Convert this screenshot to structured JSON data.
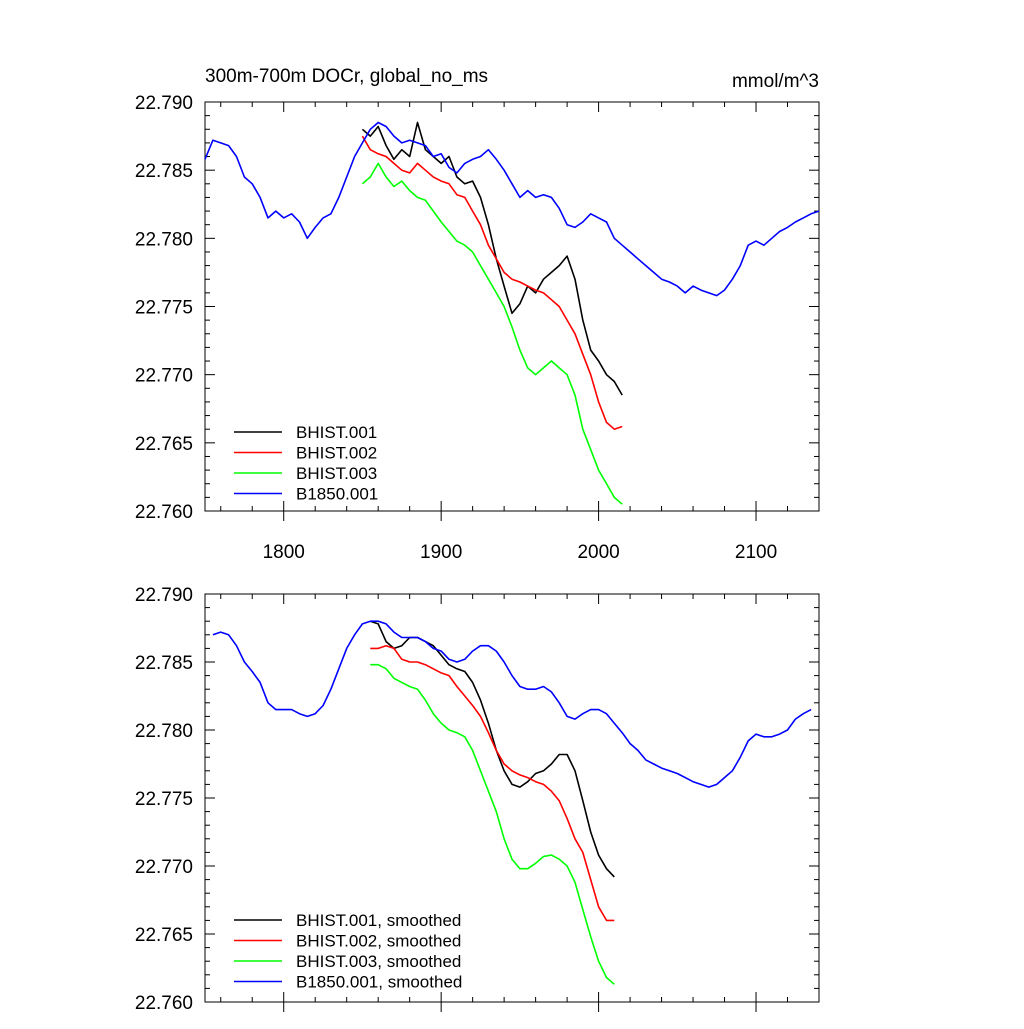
{
  "chart_data": [
    {
      "type": "line",
      "title": "300m-700m DOCr, global_no_ms",
      "units": "mmol/m^3",
      "xlim": [
        1750,
        2140
      ],
      "ylim": [
        22.76,
        22.79
      ],
      "x_ticks": [
        1800,
        1900,
        2000,
        2100
      ],
      "x_tick_labels": [
        "1800",
        "1900",
        "2000",
        "2100"
      ],
      "y_ticks": [
        22.76,
        22.765,
        22.77,
        22.775,
        22.78,
        22.785,
        22.79
      ],
      "y_tick_labels": [
        "22.760",
        "22.765",
        "22.770",
        "22.775",
        "22.780",
        "22.785",
        "22.790"
      ],
      "legend_position": "bottom-left",
      "series": [
        {
          "name": "BHIST.001",
          "color": "#000000",
          "x": [
            1850,
            1855,
            1860,
            1865,
            1870,
            1875,
            1880,
            1885,
            1890,
            1895,
            1900,
            1905,
            1910,
            1915,
            1920,
            1925,
            1930,
            1935,
            1940,
            1945,
            1950,
            1955,
            1960,
            1965,
            1970,
            1975,
            1980,
            1985,
            1990,
            1995,
            2000,
            2005,
            2010,
            2015
          ],
          "y": [
            22.788,
            22.7875,
            22.7882,
            22.7868,
            22.7858,
            22.7865,
            22.786,
            22.7885,
            22.7865,
            22.786,
            22.7855,
            22.786,
            22.7845,
            22.784,
            22.7842,
            22.783,
            22.781,
            22.7785,
            22.7765,
            22.7745,
            22.7752,
            22.7765,
            22.776,
            22.777,
            22.7775,
            22.778,
            22.7787,
            22.777,
            22.774,
            22.7718,
            22.771,
            22.77,
            22.7695,
            22.7685
          ]
        },
        {
          "name": "BHIST.002",
          "color": "#ff0000",
          "x": [
            1850,
            1855,
            1860,
            1865,
            1870,
            1875,
            1880,
            1885,
            1890,
            1895,
            1900,
            1905,
            1910,
            1915,
            1920,
            1925,
            1930,
            1935,
            1940,
            1945,
            1950,
            1955,
            1960,
            1965,
            1970,
            1975,
            1980,
            1985,
            1990,
            1995,
            2000,
            2005,
            2010,
            2015
          ],
          "y": [
            22.7875,
            22.7865,
            22.7862,
            22.786,
            22.7855,
            22.785,
            22.7848,
            22.7855,
            22.785,
            22.7845,
            22.7842,
            22.784,
            22.7832,
            22.783,
            22.782,
            22.781,
            22.7795,
            22.7785,
            22.7775,
            22.777,
            22.7768,
            22.7765,
            22.7762,
            22.776,
            22.7755,
            22.775,
            22.774,
            22.773,
            22.7715,
            22.77,
            22.768,
            22.7665,
            22.766,
            22.7662
          ]
        },
        {
          "name": "BHIST.003",
          "color": "#00ff00",
          "x": [
            1850,
            1855,
            1860,
            1865,
            1870,
            1875,
            1880,
            1885,
            1890,
            1895,
            1900,
            1905,
            1910,
            1915,
            1920,
            1925,
            1930,
            1935,
            1940,
            1945,
            1950,
            1955,
            1960,
            1965,
            1970,
            1975,
            1980,
            1985,
            1990,
            1995,
            2000,
            2005,
            2010,
            2015
          ],
          "y": [
            22.784,
            22.7845,
            22.7855,
            22.7845,
            22.7838,
            22.7842,
            22.7835,
            22.783,
            22.7828,
            22.782,
            22.7812,
            22.7805,
            22.7798,
            22.7795,
            22.779,
            22.778,
            22.777,
            22.776,
            22.775,
            22.7735,
            22.7718,
            22.7705,
            22.77,
            22.7705,
            22.771,
            22.7705,
            22.77,
            22.7685,
            22.766,
            22.7645,
            22.763,
            22.762,
            22.761,
            22.7605
          ]
        },
        {
          "name": "B1850.001",
          "color": "#0000ff",
          "x": [
            1750,
            1755,
            1760,
            1765,
            1770,
            1775,
            1780,
            1785,
            1790,
            1795,
            1800,
            1805,
            1810,
            1815,
            1820,
            1825,
            1830,
            1835,
            1840,
            1845,
            1850,
            1855,
            1860,
            1865,
            1870,
            1875,
            1880,
            1885,
            1890,
            1895,
            1900,
            1905,
            1910,
            1915,
            1920,
            1925,
            1930,
            1935,
            1940,
            1945,
            1950,
            1955,
            1960,
            1965,
            1970,
            1975,
            1980,
            1985,
            1990,
            1995,
            2000,
            2005,
            2010,
            2015,
            2020,
            2025,
            2030,
            2035,
            2040,
            2045,
            2050,
            2055,
            2060,
            2065,
            2070,
            2075,
            2080,
            2085,
            2090,
            2095,
            2100,
            2105,
            2110,
            2115,
            2120,
            2125,
            2130,
            2135,
            2140
          ],
          "y": [
            22.7858,
            22.7872,
            22.787,
            22.7868,
            22.786,
            22.7845,
            22.784,
            22.783,
            22.7815,
            22.782,
            22.7815,
            22.7818,
            22.7812,
            22.78,
            22.7808,
            22.7815,
            22.7818,
            22.783,
            22.7845,
            22.786,
            22.787,
            22.788,
            22.7885,
            22.7882,
            22.7875,
            22.787,
            22.7872,
            22.787,
            22.7868,
            22.786,
            22.7862,
            22.7852,
            22.7848,
            22.7855,
            22.7858,
            22.786,
            22.7865,
            22.7858,
            22.785,
            22.784,
            22.783,
            22.7835,
            22.783,
            22.7832,
            22.783,
            22.7822,
            22.781,
            22.7808,
            22.7812,
            22.7818,
            22.7815,
            22.7812,
            22.78,
            22.7795,
            22.779,
            22.7785,
            22.778,
            22.7775,
            22.777,
            22.7768,
            22.7765,
            22.776,
            22.7765,
            22.7762,
            22.776,
            22.7758,
            22.7762,
            22.777,
            22.778,
            22.7795,
            22.7798,
            22.7795,
            22.78,
            22.7805,
            22.7808,
            22.7812,
            22.7815,
            22.7818,
            22.782
          ]
        }
      ]
    },
    {
      "type": "line",
      "xlim": [
        1750,
        2140
      ],
      "ylim": [
        22.76,
        22.79
      ],
      "x_ticks": [
        1800,
        1900,
        2000,
        2100
      ],
      "y_ticks": [
        22.76,
        22.765,
        22.77,
        22.775,
        22.78,
        22.785,
        22.79
      ],
      "y_tick_labels": [
        "22.760",
        "22.765",
        "22.770",
        "22.775",
        "22.780",
        "22.785",
        "22.790"
      ],
      "legend_position": "bottom-left",
      "series": [
        {
          "name": "BHIST.001, smoothed",
          "color": "#000000",
          "x": [
            1855,
            1860,
            1865,
            1870,
            1875,
            1880,
            1885,
            1890,
            1895,
            1900,
            1905,
            1910,
            1915,
            1920,
            1925,
            1930,
            1935,
            1940,
            1945,
            1950,
            1955,
            1960,
            1965,
            1970,
            1975,
            1980,
            1985,
            1990,
            1995,
            2000,
            2005,
            2010
          ],
          "y": [
            22.788,
            22.7878,
            22.7865,
            22.786,
            22.7862,
            22.7868,
            22.7868,
            22.7865,
            22.7862,
            22.7855,
            22.7848,
            22.7845,
            22.7843,
            22.7835,
            22.7822,
            22.7805,
            22.7785,
            22.777,
            22.776,
            22.7758,
            22.7762,
            22.7768,
            22.777,
            22.7775,
            22.7782,
            22.7782,
            22.777,
            22.7748,
            22.7725,
            22.7708,
            22.7698,
            22.7692
          ]
        },
        {
          "name": "BHIST.002, smoothed",
          "color": "#ff0000",
          "x": [
            1855,
            1860,
            1865,
            1870,
            1875,
            1880,
            1885,
            1890,
            1895,
            1900,
            1905,
            1910,
            1915,
            1920,
            1925,
            1930,
            1935,
            1940,
            1945,
            1950,
            1955,
            1960,
            1965,
            1970,
            1975,
            1980,
            1985,
            1990,
            1995,
            2000,
            2005,
            2010
          ],
          "y": [
            22.786,
            22.786,
            22.7862,
            22.786,
            22.7852,
            22.785,
            22.785,
            22.7848,
            22.7845,
            22.7842,
            22.784,
            22.7832,
            22.7825,
            22.7818,
            22.781,
            22.7798,
            22.7785,
            22.7775,
            22.777,
            22.7767,
            22.7765,
            22.7762,
            22.776,
            22.7755,
            22.7748,
            22.7735,
            22.772,
            22.771,
            22.769,
            22.767,
            22.766,
            22.766
          ]
        },
        {
          "name": "BHIST.003, smoothed",
          "color": "#00ff00",
          "x": [
            1855,
            1860,
            1865,
            1870,
            1875,
            1880,
            1885,
            1890,
            1895,
            1900,
            1905,
            1910,
            1915,
            1920,
            1925,
            1930,
            1935,
            1940,
            1945,
            1950,
            1955,
            1960,
            1965,
            1970,
            1975,
            1980,
            1985,
            1990,
            1995,
            2000,
            2005,
            2010
          ],
          "y": [
            22.7848,
            22.7848,
            22.7845,
            22.7838,
            22.7835,
            22.7832,
            22.783,
            22.7822,
            22.7812,
            22.7805,
            22.78,
            22.7798,
            22.7795,
            22.7785,
            22.777,
            22.7755,
            22.774,
            22.772,
            22.7705,
            22.7698,
            22.7698,
            22.7702,
            22.7707,
            22.7708,
            22.7705,
            22.77,
            22.7688,
            22.7668,
            22.7648,
            22.763,
            22.7618,
            22.7613
          ]
        },
        {
          "name": "B1850.001, smoothed",
          "color": "#0000ff",
          "x": [
            1755,
            1760,
            1765,
            1770,
            1775,
            1780,
            1785,
            1790,
            1795,
            1800,
            1805,
            1810,
            1815,
            1820,
            1825,
            1830,
            1835,
            1840,
            1845,
            1850,
            1855,
            1860,
            1865,
            1870,
            1875,
            1880,
            1885,
            1890,
            1895,
            1900,
            1905,
            1910,
            1915,
            1920,
            1925,
            1930,
            1935,
            1940,
            1945,
            1950,
            1955,
            1960,
            1965,
            1970,
            1975,
            1980,
            1985,
            1990,
            1995,
            2000,
            2005,
            2010,
            2015,
            2020,
            2025,
            2030,
            2035,
            2040,
            2045,
            2050,
            2055,
            2060,
            2065,
            2070,
            2075,
            2080,
            2085,
            2090,
            2095,
            2100,
            2105,
            2110,
            2115,
            2120,
            2125,
            2130,
            2135
          ],
          "y": [
            22.787,
            22.7872,
            22.787,
            22.7862,
            22.785,
            22.7843,
            22.7835,
            22.782,
            22.7815,
            22.7815,
            22.7815,
            22.7812,
            22.781,
            22.7812,
            22.7818,
            22.783,
            22.7845,
            22.786,
            22.787,
            22.7878,
            22.788,
            22.788,
            22.7878,
            22.7872,
            22.7868,
            22.7868,
            22.7868,
            22.7865,
            22.786,
            22.7858,
            22.7852,
            22.785,
            22.7852,
            22.7858,
            22.7862,
            22.7862,
            22.7858,
            22.785,
            22.784,
            22.7832,
            22.783,
            22.783,
            22.7832,
            22.7828,
            22.782,
            22.781,
            22.7808,
            22.7812,
            22.7815,
            22.7815,
            22.7812,
            22.7805,
            22.7798,
            22.779,
            22.7785,
            22.7778,
            22.7775,
            22.7772,
            22.777,
            22.7768,
            22.7765,
            22.7762,
            22.776,
            22.7758,
            22.776,
            22.7765,
            22.777,
            22.778,
            22.7792,
            22.7797,
            22.7795,
            22.7795,
            22.7797,
            22.78,
            22.7808,
            22.7812,
            22.7815
          ]
        }
      ]
    }
  ]
}
